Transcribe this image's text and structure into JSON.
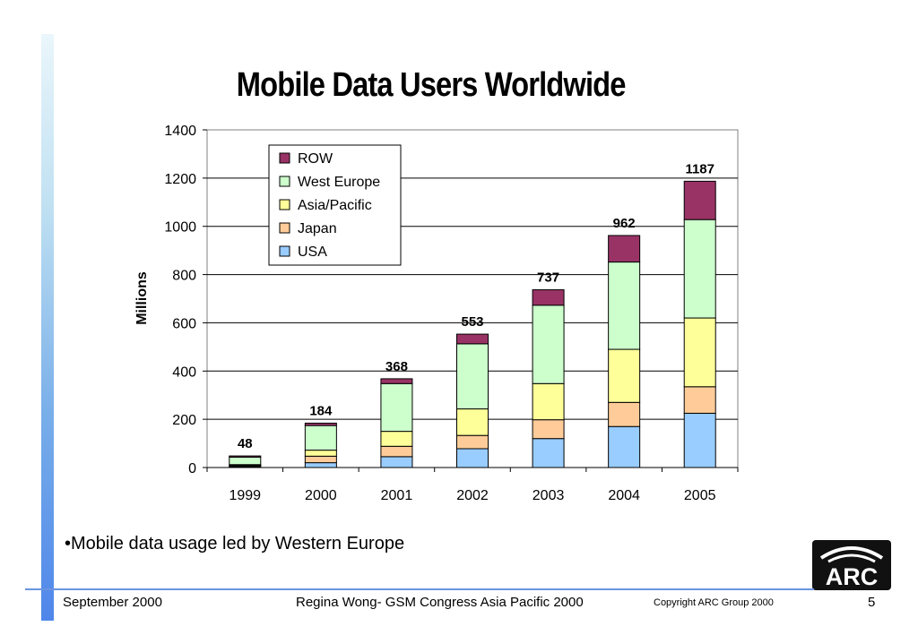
{
  "title": "Mobile Data Users Worldwide",
  "bullet": "•Mobile data usage led by Western Europe",
  "footer": {
    "date": "September 2000",
    "presenter": "Regina Wong- GSM Congress Asia Pacific 2000",
    "copyright": "Copyright ARC Group 2000",
    "page": "5"
  },
  "logo_text": "ARC",
  "chart_data": {
    "type": "bar",
    "stacked": true,
    "categories": [
      "1999",
      "2000",
      "2001",
      "2002",
      "2003",
      "2004",
      "2005"
    ],
    "series": [
      {
        "name": "USA",
        "color": "#99ccff",
        "values": [
          4,
          20,
          45,
          78,
          120,
          170,
          225
        ]
      },
      {
        "name": "Japan",
        "color": "#ffcc99",
        "values": [
          4,
          27,
          43,
          55,
          78,
          100,
          110
        ]
      },
      {
        "name": "Asia/Pacific",
        "color": "#ffff99",
        "values": [
          4,
          25,
          62,
          110,
          150,
          220,
          285
        ]
      },
      {
        "name": "West Europe",
        "color": "#ccffcc",
        "values": [
          31,
          102,
          198,
          270,
          325,
          362,
          408
        ]
      },
      {
        "name": "ROW",
        "color": "#993366",
        "values": [
          5,
          10,
          20,
          40,
          64,
          110,
          159
        ]
      }
    ],
    "totals": [
      48,
      184,
      368,
      553,
      737,
      962,
      1187
    ],
    "ylabel": "Millions",
    "xlabel": "",
    "ylim": [
      0,
      1400
    ],
    "yticks": [
      0,
      200,
      400,
      600,
      800,
      1000,
      1200,
      1400
    ],
    "grid": true,
    "legend_position": "top-left",
    "legend_order": [
      "ROW",
      "West Europe",
      "Asia/Pacific",
      "Japan",
      "USA"
    ]
  }
}
